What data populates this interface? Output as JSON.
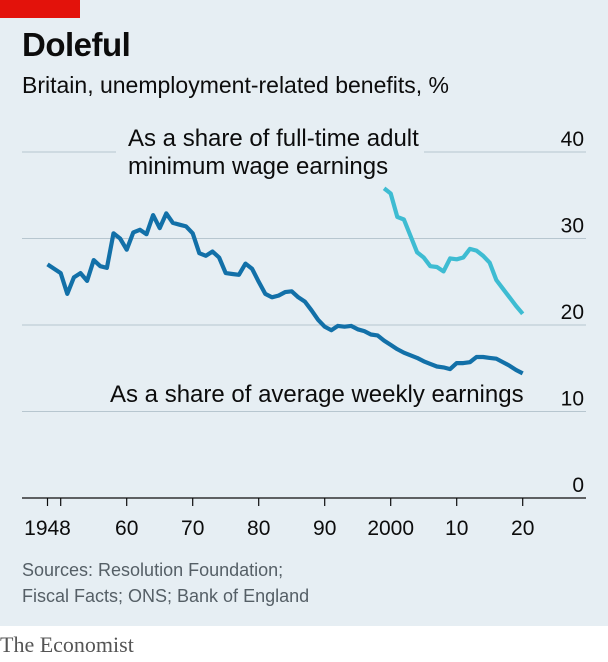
{
  "header": {
    "title": "Doleful",
    "subtitle": "Britain, unemployment-related benefits, %"
  },
  "sources": [
    "Sources: Resolution Foundation;",
    "Fiscal Facts; ONS; Bank of England"
  ],
  "brand": "The Economist",
  "colors": {
    "background": "#e6eef3",
    "series_dark": "#1270a8",
    "series_light": "#3ebcd2",
    "accent_red": "#e3120b"
  },
  "chart_data": {
    "type": "line",
    "title": "Doleful",
    "subtitle": "Britain, unemployment-related benefits, %",
    "xlim": [
      1944,
      2029
    ],
    "ylim": [
      0,
      40
    ],
    "x_ticks": [
      1948,
      1950,
      1960,
      1970,
      1980,
      1990,
      2000,
      2010,
      2020
    ],
    "x_tick_labels": [
      "1948",
      "60",
      "70",
      "80",
      "90",
      "2000",
      "10",
      "20"
    ],
    "x_tick_label_years": [
      1948,
      1960,
      1970,
      1980,
      1990,
      2000,
      2010,
      2020
    ],
    "y_ticks": [
      0,
      10,
      20,
      30,
      40
    ],
    "y_tick_labels": [
      "0",
      "10",
      "20",
      "30",
      "40"
    ],
    "grid": true,
    "series": [
      {
        "name": "As a share of average weekly earnings",
        "color": "#1270a8",
        "x": [
          1948,
          1950,
          1951,
          1952,
          1953,
          1954,
          1955,
          1956,
          1957,
          1958,
          1959,
          1960,
          1961,
          1962,
          1963,
          1964,
          1965,
          1966,
          1967,
          1968,
          1969,
          1970,
          1971,
          1972,
          1973,
          1974,
          1975,
          1976,
          1977,
          1978,
          1979,
          1980,
          1981,
          1982,
          1983,
          1984,
          1985,
          1986,
          1987,
          1988,
          1989,
          1990,
          1991,
          1992,
          1993,
          1994,
          1995,
          1996,
          1997,
          1998,
          1999,
          2000,
          2001,
          2002,
          2003,
          2004,
          2005,
          2006,
          2007,
          2008,
          2009,
          2010,
          2011,
          2012,
          2013,
          2014,
          2015,
          2016,
          2017,
          2018,
          2019,
          2020
        ],
        "y": [
          27.0,
          26.0,
          23.6,
          25.5,
          26.0,
          25.1,
          27.5,
          26.8,
          26.6,
          30.6,
          30.0,
          28.7,
          30.7,
          31.0,
          30.5,
          32.7,
          31.2,
          32.9,
          31.8,
          31.6,
          31.4,
          30.6,
          28.3,
          28.0,
          28.5,
          27.8,
          26.0,
          25.9,
          25.8,
          27.1,
          26.5,
          25.0,
          23.6,
          23.2,
          23.4,
          23.8,
          23.9,
          23.2,
          22.7,
          21.7,
          20.6,
          19.8,
          19.4,
          19.9,
          19.8,
          19.9,
          19.5,
          19.3,
          18.9,
          18.8,
          18.2,
          17.7,
          17.2,
          16.8,
          16.5,
          16.2,
          15.8,
          15.5,
          15.2,
          15.1,
          14.9,
          15.6,
          15.6,
          15.7,
          16.3,
          16.3,
          16.2,
          16.1,
          15.7,
          15.3,
          14.8,
          14.4
        ]
      },
      {
        "name": "As a share of full-time adult minimum wage earnings",
        "color": "#3ebcd2",
        "x": [
          1999,
          2000,
          2001,
          2002,
          2003,
          2004,
          2005,
          2006,
          2007,
          2008,
          2009,
          2010,
          2011,
          2012,
          2013,
          2014,
          2015,
          2016,
          2017,
          2018,
          2019,
          2020
        ],
        "y": [
          35.8,
          35.2,
          32.5,
          32.2,
          30.3,
          28.4,
          27.8,
          26.8,
          26.7,
          26.2,
          27.7,
          27.6,
          27.8,
          28.8,
          28.6,
          28.0,
          27.2,
          25.2,
          24.2,
          23.2,
          22.2,
          21.3
        ]
      }
    ],
    "annotations": [
      {
        "lines": [
          "As a share of full-time adult",
          "minimum wage earnings"
        ],
        "series": 1
      },
      {
        "lines": [
          "As a share of average weekly earnings"
        ],
        "series": 0
      }
    ]
  }
}
